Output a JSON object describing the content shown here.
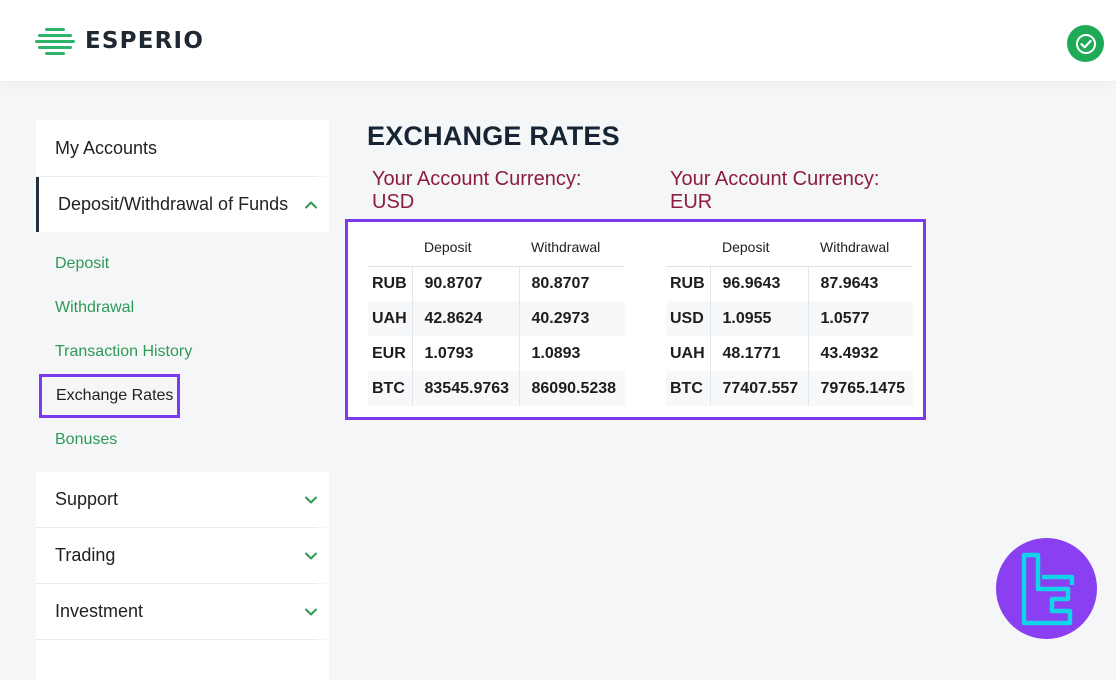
{
  "header": {
    "logo_text": "ESPERIO",
    "status_icon": "check-circle-icon",
    "accent_color": "#1eaa56"
  },
  "sidebar": {
    "my_accounts": "My Accounts",
    "deposit_withdrawal": "Deposit/Withdrawal of Funds",
    "sub_items": {
      "deposit": "Deposit",
      "withdrawal": "Withdrawal",
      "transaction_history": "Transaction History",
      "exchange_rates": "Exchange Rates",
      "bonuses": "Bonuses"
    },
    "support": "Support",
    "trading": "Trading",
    "investment": "Investment"
  },
  "main": {
    "title": "EXCHANGE RATES",
    "usd": {
      "label_line1": "Your Account Currency:",
      "label_line2": "USD",
      "col_deposit": "Deposit",
      "col_withdrawal": "Withdrawal",
      "rows": [
        {
          "currency": "RUB",
          "deposit": "90.8707",
          "withdrawal": "80.8707"
        },
        {
          "currency": "UAH",
          "deposit": "42.8624",
          "withdrawal": "40.2973"
        },
        {
          "currency": "EUR",
          "deposit": "1.0793",
          "withdrawal": "1.0893"
        },
        {
          "currency": "BTC",
          "deposit": "83545.9763",
          "withdrawal": "86090.5238"
        }
      ]
    },
    "eur": {
      "label_line1": "Your Account Currency:",
      "label_line2": "EUR",
      "col_deposit": "Deposit",
      "col_withdrawal": "Withdrawal",
      "rows": [
        {
          "currency": "RUB",
          "deposit": "96.9643",
          "withdrawal": "87.9643"
        },
        {
          "currency": "USD",
          "deposit": "1.0955",
          "withdrawal": "1.0577"
        },
        {
          "currency": "UAH",
          "deposit": "48.1771",
          "withdrawal": "43.4932"
        },
        {
          "currency": "BTC",
          "deposit": "77407.557",
          "withdrawal": "79765.1475"
        }
      ]
    }
  },
  "colors": {
    "highlight": "#7c3aed",
    "link_green": "#2f9a57",
    "currency_label": "#8c1c43",
    "badge": "#8a3ff0"
  }
}
